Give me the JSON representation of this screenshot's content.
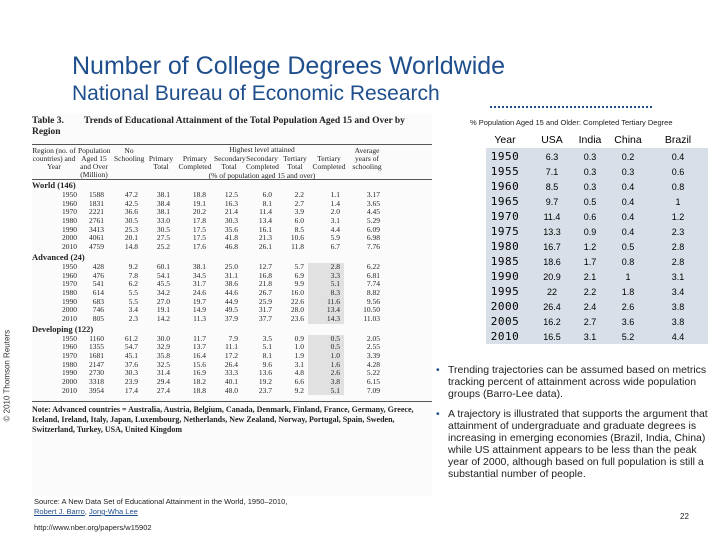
{
  "slide": {
    "title": "Number of College Degrees Worldwide",
    "subtitle": "National Bureau of Economic Research",
    "credit": "© 2010 Thomson Reuters",
    "page_number": "22"
  },
  "scan_table": {
    "number": "Table 3.",
    "title": "Trends of Educational Attainment of the Total Population Aged 15 and Over by Region",
    "columns": [
      "Region (no. of countries) and Year",
      "Population Aged 15 and Over (Million)",
      "No Schooling",
      "Primary Total",
      "Primary Completed",
      "Secondary Total",
      "Secondary Completed",
      "Tertiary Total",
      "Tertiary Completed",
      "Average years of schooling"
    ],
    "header_group": "Highest level attained",
    "header_sub": "(% of population aged 15 and over)",
    "groups": [
      {
        "name": "World (146)",
        "rows": [
          [
            "1950",
            "1588",
            "47.2",
            "38.1",
            "18.8",
            "12.5",
            "6.0",
            "2.2",
            "1.1",
            "3.17"
          ],
          [
            "1960",
            "1831",
            "42.5",
            "38.4",
            "19.1",
            "16.3",
            "8.1",
            "2.7",
            "1.4",
            "3.65"
          ],
          [
            "1970",
            "2221",
            "36.6",
            "38.1",
            "20.2",
            "21.4",
            "11.4",
            "3.9",
            "2.0",
            "4.45"
          ],
          [
            "1980",
            "2761",
            "30.5",
            "33.0",
            "17.8",
            "30.3",
            "13.4",
            "6.0",
            "3.1",
            "5.29"
          ],
          [
            "1990",
            "3413",
            "25.3",
            "30.5",
            "17.5",
            "35.6",
            "16.1",
            "8.5",
            "4.4",
            "6.09"
          ],
          [
            "2000",
            "4061",
            "20.1",
            "27.5",
            "17.5",
            "41.8",
            "21.3",
            "10.6",
            "5.9",
            "6.98"
          ],
          [
            "2010",
            "4759",
            "14.8",
            "25.2",
            "17.6",
            "46.8",
            "26.1",
            "11.8",
            "6.7",
            "7.76"
          ]
        ]
      },
      {
        "name": "Advanced (24)",
        "rows": [
          [
            "1950",
            "428",
            "9.2",
            "60.1",
            "38.1",
            "25.0",
            "12.7",
            "5.7",
            "2.8",
            "6.22"
          ],
          [
            "1960",
            "476",
            "7.8",
            "54.1",
            "34.5",
            "31.1",
            "16.8",
            "6.9",
            "3.3",
            "6.81"
          ],
          [
            "1970",
            "541",
            "6.2",
            "45.5",
            "31.7",
            "38.6",
            "21.8",
            "9.9",
            "5.1",
            "7.74"
          ],
          [
            "1980",
            "614",
            "5.5",
            "34.2",
            "24.6",
            "44.6",
            "26.7",
            "16.0",
            "8.3",
            "8.82"
          ],
          [
            "1990",
            "683",
            "5.5",
            "27.0",
            "19.7",
            "44.9",
            "25.9",
            "22.6",
            "11.6",
            "9.56"
          ],
          [
            "2000",
            "746",
            "3.4",
            "19.1",
            "14.9",
            "49.5",
            "31.7",
            "28.0",
            "13.4",
            "10.50"
          ],
          [
            "2010",
            "805",
            "2.3",
            "14.2",
            "11.3",
            "37.9",
            "37.7",
            "23.6",
            "14.3",
            "11.03"
          ]
        ]
      },
      {
        "name": "Developing (122)",
        "rows": [
          [
            "1950",
            "1160",
            "61.2",
            "30.0",
            "11.7",
            "7.9",
            "3.5",
            "0.9",
            "0.5",
            "2.05"
          ],
          [
            "1960",
            "1355",
            "54.7",
            "32.9",
            "13.7",
            "11.1",
            "5.1",
            "1.0",
            "0.5",
            "2.55"
          ],
          [
            "1970",
            "1681",
            "45.1",
            "35.8",
            "16.4",
            "17.2",
            "8.1",
            "1.9",
            "1.0",
            "3.39"
          ],
          [
            "1980",
            "2147",
            "37.6",
            "32.5",
            "15.6",
            "26.4",
            "9.6",
            "3.1",
            "1.6",
            "4.28"
          ],
          [
            "1990",
            "2730",
            "30.3",
            "31.4",
            "16.9",
            "33.3",
            "13.6",
            "4.8",
            "2.6",
            "5.22"
          ],
          [
            "2000",
            "3318",
            "23.9",
            "29.4",
            "18.2",
            "40.1",
            "19.2",
            "6.6",
            "3.8",
            "6.15"
          ],
          [
            "2010",
            "3954",
            "17.4",
            "27.4",
            "18.8",
            "48.0",
            "23.7",
            "9.2",
            "5.1",
            "7.09"
          ]
        ]
      }
    ],
    "note": "Note: Advanced countries = Australia, Austria, Belgium, Canada, Denmark, Finland, France, Germany, Greece, Iceland, Ireland, Italy, Japan, Luxembourg, Netherlands, New Zealand, Norway, Portugal, Spain, Sweden, Switzerland, Turkey, USA, United Kingdom"
  },
  "right_table": {
    "caption": "% Population Aged 15 and Older: Completed Tertiary Degree",
    "headers": [
      "Year",
      "USA",
      "India",
      "China",
      "Brazil"
    ],
    "rows": [
      [
        "1950",
        "6.3",
        "0.3",
        "0.2",
        "0.4"
      ],
      [
        "1955",
        "7.1",
        "0.3",
        "0.3",
        "0.6"
      ],
      [
        "1960",
        "8.5",
        "0.3",
        "0.4",
        "0.8"
      ],
      [
        "1965",
        "9.7",
        "0.5",
        "0.4",
        "1"
      ],
      [
        "1970",
        "11.4",
        "0.6",
        "0.4",
        "1.2"
      ],
      [
        "1975",
        "13.3",
        "0.9",
        "0.4",
        "2.3"
      ],
      [
        "1980",
        "16.7",
        "1.2",
        "0.5",
        "2.8"
      ],
      [
        "1985",
        "18.6",
        "1.7",
        "0.8",
        "2.8"
      ],
      [
        "1990",
        "20.9",
        "2.1",
        "1",
        "3.1"
      ],
      [
        "1995",
        "22",
        "2.2",
        "1.8",
        "3.4"
      ],
      [
        "2000",
        "26.4",
        "2.4",
        "2.6",
        "3.8"
      ],
      [
        "2005",
        "16.2",
        "2.7",
        "3.6",
        "3.8"
      ],
      [
        "2010",
        "16.5",
        "3.1",
        "5.2",
        "4.4"
      ]
    ]
  },
  "bullets": [
    "Trending trajectories can be assumed based on metrics tracking percent of attainment across wide population groups (Barro-Lee data).",
    "A trajectory is illustrated that supports the argument that attainment of undergraduate and graduate degrees is increasing in emerging economies (Brazil, India, China) while US attainment appears to be less than the peak year of 2000, although based on full population is still a substantial number of people."
  ],
  "source": {
    "prefix": "Source: A New Data Set of Educational Attainment in the World, 1950–2010, ",
    "author1": "Robert J. Barro",
    "sep": ", ",
    "author2": "Jong-Wha Lee",
    "url": "http://www.nber.org/papers/w15902"
  }
}
